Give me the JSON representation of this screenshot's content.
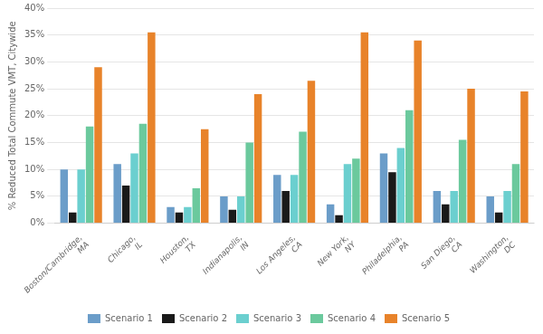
{
  "chart_data": {
    "type": "bar",
    "ylabel": "% Reduced Total Commute VMT, Citywide",
    "categories": [
      "Boston/Cambridge,\nMA",
      "Chicago,\nIL",
      "Houston,\nTX",
      "Indianapolis,\nIN",
      "Los Angeles,\nCA",
      "New York,\nNY",
      "Philadelphia,\nPA",
      "San Diego,\nCA",
      "Washington,\nDC"
    ],
    "series": [
      {
        "name": "Scenario 1",
        "color": "#6B9DC9",
        "values": [
          10,
          11,
          3,
          5,
          9,
          3.5,
          13,
          6,
          5
        ]
      },
      {
        "name": "Scenario 2",
        "color": "#1a1a1a",
        "values": [
          2,
          7,
          2,
          2.5,
          6,
          1.5,
          9.5,
          3.5,
          2
        ]
      },
      {
        "name": "Scenario 3",
        "color": "#6BCFCF",
        "values": [
          10,
          13,
          3,
          5,
          9,
          11,
          14,
          6,
          6
        ]
      },
      {
        "name": "Scenario 4",
        "color": "#6BC99D",
        "values": [
          18,
          18.5,
          6.5,
          15,
          17,
          12,
          21,
          15.5,
          11
        ]
      },
      {
        "name": "Scenario 5",
        "color": "#E8832A",
        "values": [
          29,
          35.5,
          17.5,
          24,
          26.5,
          35.5,
          34,
          25,
          24.5
        ]
      }
    ],
    "ylim": [
      0,
      40
    ],
    "yticks": [
      {
        "value": 0,
        "label": "0%"
      },
      {
        "value": 5,
        "label": "5%"
      },
      {
        "value": 10,
        "label": "10%"
      },
      {
        "value": 15,
        "label": "15%"
      },
      {
        "value": 20,
        "label": "20%"
      },
      {
        "value": 25,
        "label": "25%"
      },
      {
        "value": 30,
        "label": "30%"
      },
      {
        "value": 35,
        "label": "35%"
      },
      {
        "value": 40,
        "label": "40%"
      }
    ],
    "grid": true,
    "legend": "bottom"
  }
}
